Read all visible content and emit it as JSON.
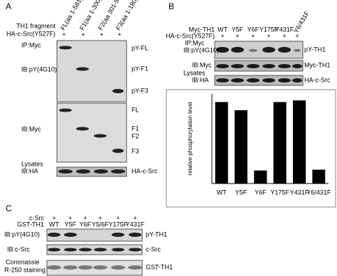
{
  "panel_a": {
    "label": "A",
    "row_labels": [
      "TH1 fragment",
      "HA-c-Src(Y527F)"
    ],
    "columns": [
      "FL(aa 1-581)",
      "F1(aa 1-300)",
      "F2(aa 301-581)",
      "F3(aa 1-180)"
    ],
    "plus": [
      "+",
      "+",
      "+",
      "+"
    ],
    "blots": [
      {
        "left": [
          "IP:Myc",
          "IB:pY(4G10)"
        ],
        "right": [
          "pY-FL",
          "pY-F1",
          "pY-F3"
        ]
      },
      {
        "left": [
          "IB:Myc"
        ],
        "right": [
          "FL",
          "F1",
          "F2",
          "F3"
        ]
      },
      {
        "left": [
          "IB:HA"
        ],
        "right": [
          "HA-c-Src"
        ]
      }
    ],
    "lysates": "Lysates"
  },
  "panel_b": {
    "label": "B",
    "row_labels": [
      "Myc-TH1",
      "HA-c-Src(Y527F)"
    ],
    "columns": [
      "WT",
      "Y5F",
      "Y6F",
      "Y175F",
      "Y431F",
      "Y6/431F"
    ],
    "plus": [
      "+",
      "+",
      "+",
      "+",
      "+",
      "+"
    ],
    "blots": [
      {
        "left": [
          "IP:Myc",
          "IB:pY(4G10)"
        ],
        "right": [
          "pY-TH1"
        ]
      },
      {
        "left": [
          "IB:Myc"
        ],
        "right": [
          "Myc-TH1"
        ]
      },
      {
        "left": [
          "IB:HA"
        ],
        "right": [
          "HA-c-Src"
        ]
      }
    ],
    "lysates": "Lysates"
  },
  "chart_data": {
    "type": "bar",
    "y_label": "relative phosphorylation level",
    "categories": [
      "WT",
      "Y5F",
      "Y6F",
      "Y175F",
      "Y431F",
      "Y6/431F"
    ],
    "values": [
      1.0,
      0.9,
      0.16,
      1.0,
      1.02,
      0.17
    ],
    "color": "#000000",
    "ylim": [
      0,
      1.1
    ]
  },
  "panel_c": {
    "label": "C",
    "row_labels": [
      "c-Src",
      "GST-TH1"
    ],
    "columns": [
      "WT",
      "Y5F",
      "Y6F",
      "Y5/6F",
      "Y175F",
      "Y431F"
    ],
    "plus": [
      "+",
      "+",
      "+",
      "+",
      "+",
      "+"
    ],
    "blots": [
      {
        "left": [
          "IB:pY(4G10)"
        ],
        "right": [
          "pY-TH1"
        ]
      },
      {
        "left": [
          "IB:c-Src"
        ],
        "right": [
          "c-Src"
        ]
      },
      {
        "left": [
          "Commassie",
          "R-250 staining"
        ],
        "right": [
          "GST-TH1"
        ]
      }
    ]
  }
}
